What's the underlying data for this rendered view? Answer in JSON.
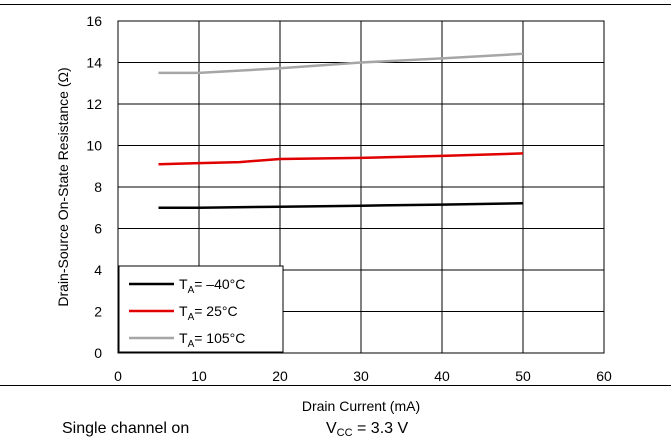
{
  "chart_data": {
    "type": "line",
    "xlabel": "Drain Current (mA)",
    "ylabel": "Drain-Source On-State Resistance (Ω)",
    "xlim": [
      0,
      60
    ],
    "ylim": [
      0,
      16
    ],
    "xticks": [
      0,
      10,
      20,
      30,
      40,
      50,
      60
    ],
    "yticks": [
      0,
      2,
      4,
      6,
      8,
      10,
      12,
      14,
      16
    ],
    "grid": true,
    "legend_position": "bottom-left",
    "series": [
      {
        "name": "T_A = –40°C",
        "legend_main": "T",
        "legend_sub": "A",
        "legend_rest": "= –40°C",
        "color": "#000000",
        "x": [
          5,
          10,
          20,
          30,
          40,
          50
        ],
        "y": [
          7.0,
          7.0,
          7.05,
          7.1,
          7.15,
          7.22
        ]
      },
      {
        "name": "T_A = 25°C",
        "legend_main": "T",
        "legend_sub": "A",
        "legend_rest": "= 25°C",
        "color": "#e00000",
        "x": [
          5,
          10,
          15,
          20,
          30,
          40,
          50
        ],
        "y": [
          9.1,
          9.15,
          9.2,
          9.35,
          9.4,
          9.5,
          9.62
        ]
      },
      {
        "name": "T_A = 105°C",
        "legend_main": "T",
        "legend_sub": "A",
        "legend_rest": "= 105°C",
        "color": "#a6a6a6",
        "x": [
          5,
          10,
          20,
          30,
          40,
          50
        ],
        "y": [
          13.5,
          13.5,
          13.72,
          14.0,
          14.2,
          14.42
        ]
      }
    ]
  },
  "footer": {
    "left": "Single channel on",
    "right_main": "V",
    "right_sub": "CC",
    "right_rest": " = 3.3 V"
  }
}
